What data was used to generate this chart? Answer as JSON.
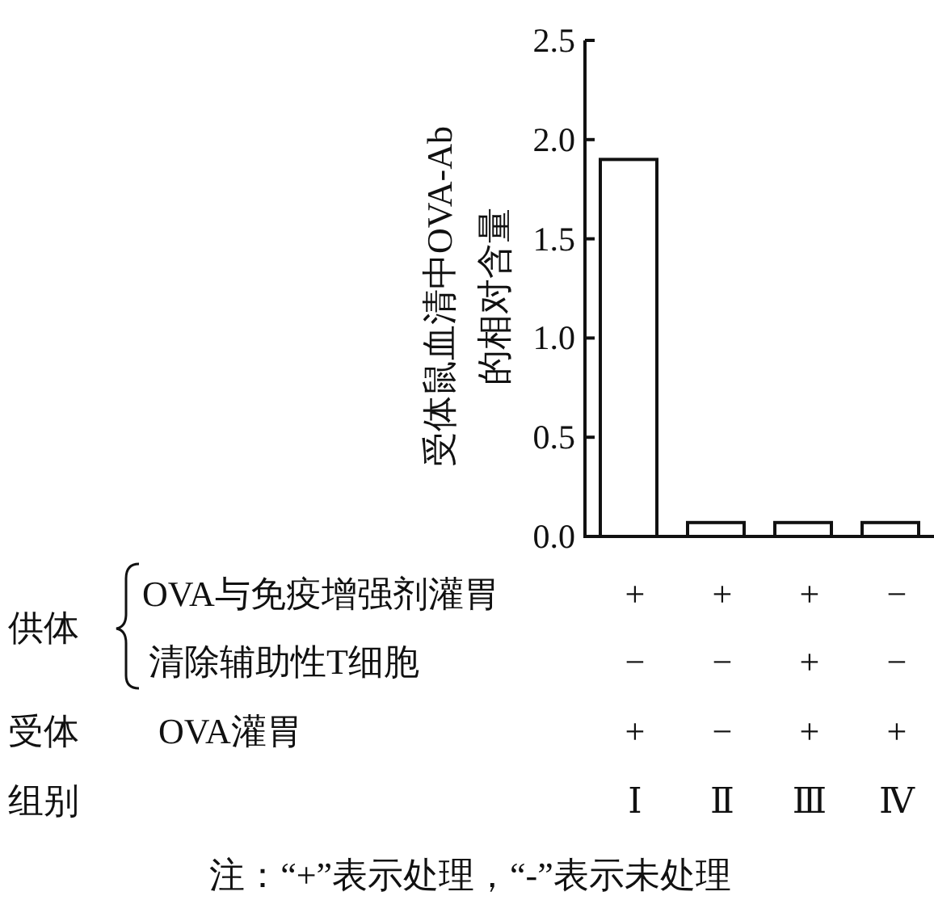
{
  "chart_data": {
    "type": "bar",
    "ylabel": "受体鼠血清中OVA-Ab\n的相对含量",
    "categories": [
      "+\n−\n+\nⅠ",
      "+\n−\n−\nⅡ",
      "+\n+\n+\nⅢ",
      "−\n−\n+\nⅣ"
    ],
    "values": [
      1.9,
      0.07,
      0.07,
      0.07
    ],
    "color": "#ffffff",
    "ylim": [
      0,
      2.5
    ],
    "yticks": [
      {
        "value": 0,
        "label": "0.0"
      },
      {
        "value": 0.5,
        "label": "0.5"
      },
      {
        "value": 1,
        "label": "1.0"
      },
      {
        "value": 1.5,
        "label": "1.5"
      },
      {
        "value": 2,
        "label": "2.0"
      },
      {
        "value": 2.5,
        "label": "2.5"
      }
    ],
    "annotations": [
      "供体",
      "OVA与免疫增强剂灌胃",
      "清除辅助性T细胞",
      "受体",
      "OVA灌胃",
      "组别",
      "注：“+”表示处理，“-”表示未处理"
    ]
  }
}
